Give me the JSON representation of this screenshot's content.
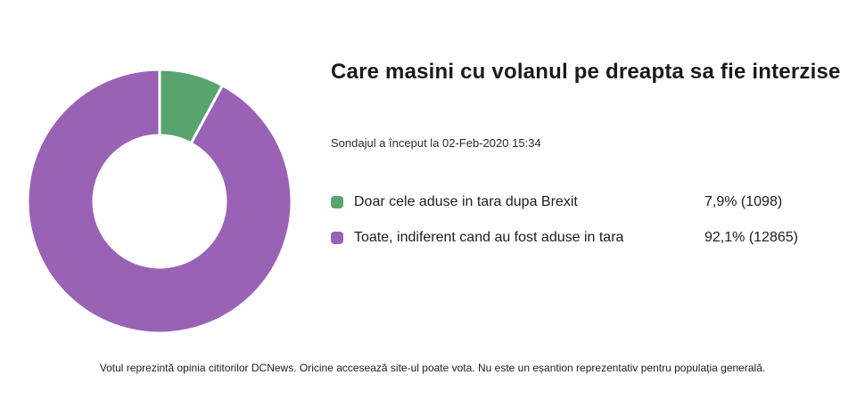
{
  "header": {
    "title": "Care masini cu volanul pe dreapta sa fie interzise",
    "subtitle": "Sondajul a început la 02-Feb-2020 15:34"
  },
  "chart_data": {
    "type": "pie",
    "donut": true,
    "title": "Care masini cu volanul pe dreapta sa fie interzise",
    "start_angle_deg": 0,
    "inner_radius_ratio": 0.5,
    "legend_position": "right",
    "series": [
      {
        "label": "Doar cele aduse in tara dupa Brexit",
        "percent": 7.9,
        "votes": 1098,
        "value_label": "7,9% (1098)",
        "color": "#58a46c"
      },
      {
        "label": "Toate, indiferent cand au fost aduse in tara",
        "percent": 92.1,
        "votes": 12865,
        "value_label": "92,1% (12865)",
        "color": "#9a62b5"
      }
    ]
  },
  "footer": {
    "disclaimer": "Votul reprezintă opinia cititorilor DCNews. Oricine accesează site-ul poate vota. Nu este un eșantion reprezentativ pentru populația generală."
  },
  "colors": {
    "background": "#ffffff",
    "slice_gap": "#ffffff",
    "text": "#1d1d1d"
  }
}
